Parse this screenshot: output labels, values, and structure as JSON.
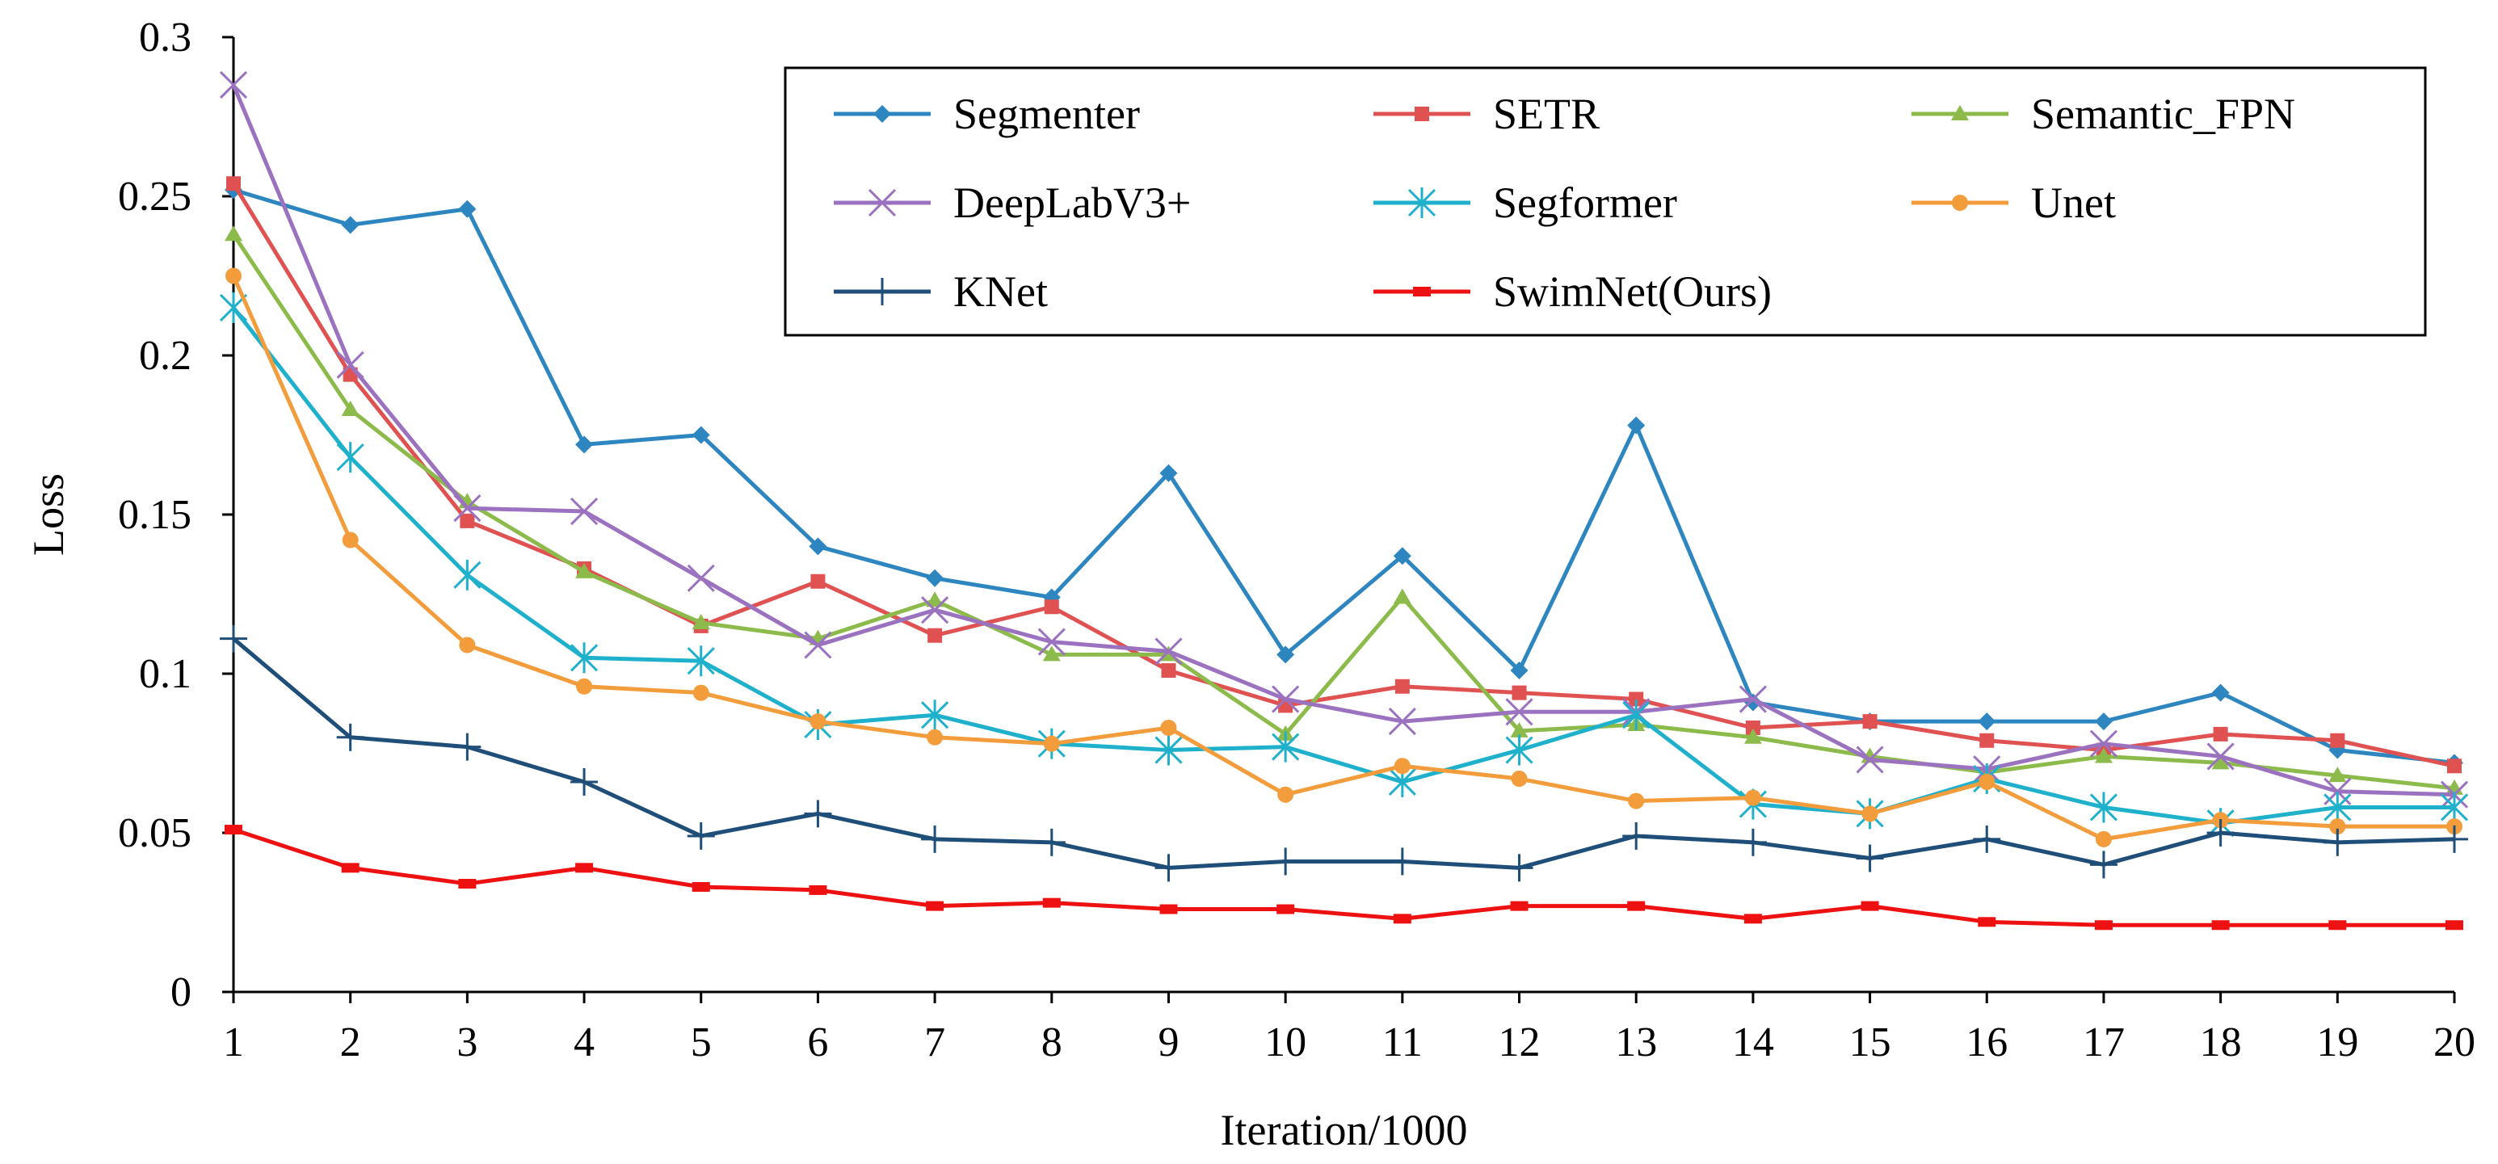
{
  "chart_data": {
    "type": "line",
    "title": "",
    "xlabel": "Iteration/1000",
    "ylabel": "Loss",
    "x": [
      1,
      2,
      3,
      4,
      5,
      6,
      7,
      8,
      9,
      10,
      11,
      12,
      13,
      14,
      15,
      16,
      17,
      18,
      19,
      20
    ],
    "xlim": [
      1,
      20
    ],
    "ylim": [
      0,
      0.3
    ],
    "yticks": [
      0,
      0.05,
      0.1,
      0.15,
      0.2,
      0.25,
      0.3
    ],
    "ytick_labels": [
      "0",
      "0.05",
      "0.1",
      "0.15",
      "0.2",
      "0.25",
      "0.3"
    ],
    "xtick_labels": [
      "1",
      "2",
      "3",
      "4",
      "5",
      "6",
      "7",
      "8",
      "9",
      "10",
      "11",
      "12",
      "13",
      "14",
      "15",
      "16",
      "17",
      "18",
      "19",
      "20"
    ],
    "grid": false,
    "legend_position": "top-right",
    "series": [
      {
        "name": "Segmenter",
        "color": "#2E86C1",
        "marker": "diamond",
        "values": [
          0.252,
          0.241,
          0.246,
          0.172,
          0.175,
          0.14,
          0.13,
          0.124,
          0.163,
          0.106,
          0.137,
          0.101,
          0.178,
          0.091,
          0.085,
          0.085,
          0.085,
          0.094,
          0.076,
          0.072
        ]
      },
      {
        "name": "SETR",
        "color": "#E05252",
        "marker": "square",
        "values": [
          0.254,
          0.194,
          0.148,
          0.133,
          0.115,
          0.129,
          0.112,
          0.121,
          0.101,
          0.09,
          0.096,
          0.094,
          0.092,
          0.083,
          0.085,
          0.079,
          0.076,
          0.081,
          0.079,
          0.071
        ]
      },
      {
        "name": "Semantic_FPN",
        "color": "#8DBB4B",
        "marker": "triangle",
        "values": [
          0.238,
          0.183,
          0.154,
          0.132,
          0.116,
          0.111,
          0.123,
          0.106,
          0.106,
          0.081,
          0.124,
          0.082,
          0.084,
          0.08,
          0.074,
          0.069,
          0.074,
          0.072,
          0.068,
          0.064
        ]
      },
      {
        "name": "DeepLabV3+",
        "color": "#9B72C0",
        "marker": "x",
        "values": [
          0.285,
          0.197,
          0.152,
          0.151,
          0.13,
          0.109,
          0.12,
          0.11,
          0.107,
          0.092,
          0.085,
          0.088,
          0.088,
          0.092,
          0.073,
          0.07,
          0.078,
          0.074,
          0.063,
          0.062
        ]
      },
      {
        "name": "Segformer",
        "color": "#1FB1CC",
        "marker": "star",
        "values": [
          0.215,
          0.168,
          0.131,
          0.105,
          0.104,
          0.084,
          0.087,
          0.078,
          0.076,
          0.077,
          0.066,
          0.076,
          0.087,
          0.059,
          0.056,
          0.067,
          0.058,
          0.053,
          0.058,
          0.058
        ]
      },
      {
        "name": "Unet",
        "color": "#F39C3C",
        "marker": "circle",
        "values": [
          0.225,
          0.142,
          0.109,
          0.096,
          0.094,
          0.085,
          0.08,
          0.078,
          0.083,
          0.062,
          0.071,
          0.067,
          0.06,
          0.061,
          0.056,
          0.066,
          0.048,
          0.054,
          0.052,
          0.052
        ]
      },
      {
        "name": "KNet",
        "color": "#1F4E79",
        "marker": "plus",
        "values": [
          0.111,
          0.08,
          0.077,
          0.066,
          0.049,
          0.056,
          0.048,
          0.047,
          0.039,
          0.041,
          0.041,
          0.039,
          0.049,
          0.047,
          0.042,
          0.048,
          0.04,
          0.05,
          0.047,
          0.048
        ]
      },
      {
        "name": "SwimNet(Ours)",
        "color": "#EE1111",
        "marker": "dash",
        "values": [
          0.051,
          0.039,
          0.034,
          0.039,
          0.033,
          0.032,
          0.027,
          0.028,
          0.026,
          0.026,
          0.023,
          0.027,
          0.027,
          0.023,
          0.027,
          0.022,
          0.021,
          0.021,
          0.021,
          0.021
        ]
      }
    ]
  }
}
